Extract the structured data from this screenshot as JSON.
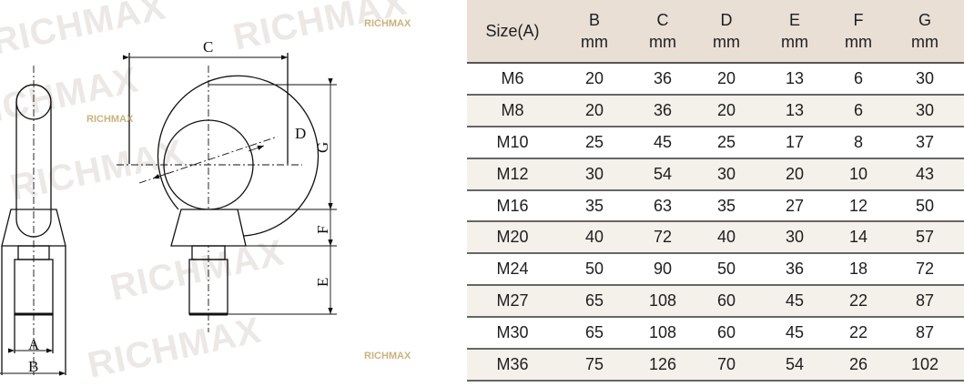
{
  "drawing": {
    "labels": {
      "A": "A",
      "B": "B",
      "C": "C",
      "D": "D",
      "E": "E",
      "F": "F",
      "G": "G"
    },
    "watermark": "RICHMAX"
  },
  "table": {
    "size_header": "Size(A)",
    "columns": [
      {
        "letter": "B",
        "unit": "mm"
      },
      {
        "letter": "C",
        "unit": "mm"
      },
      {
        "letter": "D",
        "unit": "mm"
      },
      {
        "letter": "E",
        "unit": "mm"
      },
      {
        "letter": "F",
        "unit": "mm"
      },
      {
        "letter": "G",
        "unit": "mm"
      }
    ],
    "rows": [
      [
        "M6",
        "20",
        "36",
        "20",
        "13",
        "6",
        "30"
      ],
      [
        "M8",
        "20",
        "36",
        "20",
        "13",
        "6",
        "30"
      ],
      [
        "M10",
        "25",
        "45",
        "25",
        "17",
        "8",
        "37"
      ],
      [
        "M12",
        "30",
        "54",
        "30",
        "20",
        "10",
        "43"
      ],
      [
        "M16",
        "35",
        "63",
        "35",
        "27",
        "12",
        "50"
      ],
      [
        "M20",
        "40",
        "72",
        "40",
        "30",
        "14",
        "57"
      ],
      [
        "M24",
        "50",
        "90",
        "50",
        "36",
        "18",
        "72"
      ],
      [
        "M27",
        "65",
        "108",
        "60",
        "45",
        "22",
        "87"
      ],
      [
        "M30",
        "65",
        "108",
        "60",
        "45",
        "22",
        "87"
      ],
      [
        "M36",
        "75",
        "126",
        "70",
        "54",
        "26",
        "102"
      ]
    ]
  }
}
